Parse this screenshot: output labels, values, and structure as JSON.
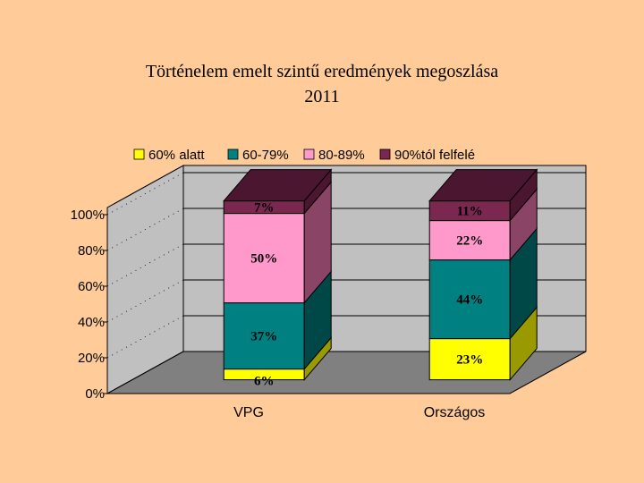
{
  "chart_data": {
    "type": "bar",
    "stacked": true,
    "percent_stacked": true,
    "three_d": true,
    "title_line1": "Történelem emelt szintű eredmények megoszlása",
    "title_line2": "2011",
    "categories": [
      "VPG",
      "Országos"
    ],
    "series": [
      {
        "name": "60% alatt",
        "values": [
          6,
          23
        ],
        "labels": [
          "6%",
          "23%"
        ],
        "color": "#FFFF00",
        "side_color": "#999900"
      },
      {
        "name": "60-79%",
        "values": [
          37,
          44
        ],
        "labels": [
          "37%",
          "44%"
        ],
        "color": "#008080",
        "side_color": "#004848"
      },
      {
        "name": "80-89%",
        "values": [
          50,
          22
        ],
        "labels": [
          "50%",
          "22%"
        ],
        "color": "#FF99CC",
        "side_color": "#8A4466"
      },
      {
        "name": "90%tól felfelé",
        "values": [
          7,
          11
        ],
        "labels": [
          "7%",
          "11%"
        ],
        "color": "#7A2850",
        "side_color": "#4A1630"
      }
    ],
    "y_ticks": [
      "0%",
      "20%",
      "40%",
      "60%",
      "80%",
      "100%"
    ],
    "ylim": [
      0,
      100
    ],
    "legend_position": "top",
    "wall_color": "#C0C0C0",
    "floor_color": "#808080"
  }
}
